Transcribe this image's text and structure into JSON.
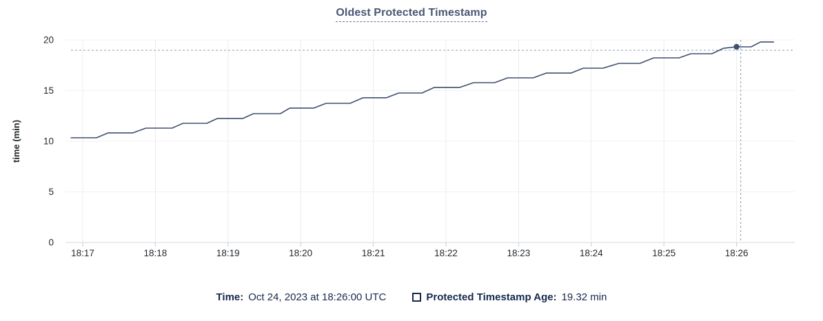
{
  "title": "Oldest Protected Timestamp",
  "tooltip_legend": {
    "time_label": "Time:",
    "time_value": "Oct 24, 2023 at 18:26:00 UTC",
    "series_swatch": "unchecked-square-outline",
    "series_label": "Protected Timestamp Age:",
    "series_value": "19.32 min"
  },
  "colors": {
    "title_text": "#475872",
    "line": "#3f4f6e",
    "hover_dot": "#3f4f6e",
    "crosshair_dashed": "#9fb2c0",
    "grid_horizontal": "#f1f1f3",
    "grid_vertical": "#ececee",
    "axis_baseline": "#d7dadd",
    "tick_mark": "#c8cbd0",
    "tick_label_text": "#24292e",
    "legend_text": "#16294d",
    "background": "#ffffff"
  },
  "chart_data": {
    "type": "line",
    "title": "Oldest Protected Timestamp",
    "xlabel": "",
    "ylabel": "time (min)",
    "ylim": [
      0,
      20
    ],
    "yticks": [
      0,
      5,
      10,
      15,
      20
    ],
    "ytick_labels": [
      "0",
      "5",
      "10",
      "15",
      "20"
    ],
    "xtick_labels": [
      "18:17",
      "18:18",
      "18:19",
      "18:20",
      "18:21",
      "18:22",
      "18:23",
      "18:24",
      "18:25",
      "18:26"
    ],
    "xtick_t": [
      0,
      1,
      2,
      3,
      4,
      5,
      6,
      7,
      8,
      9
    ],
    "x_unit": "minutes after 18:17 UTC, Oct 24 2023",
    "grid": true,
    "legend_position": "bottom",
    "series": [
      {
        "name": "Protected Timestamp Age",
        "unit": "min",
        "points": [
          [
            -0.16,
            10.34
          ],
          [
            0.19,
            10.34
          ],
          [
            0.35,
            10.82
          ],
          [
            0.69,
            10.82
          ],
          [
            0.87,
            11.29
          ],
          [
            1.23,
            11.29
          ],
          [
            1.38,
            11.77
          ],
          [
            1.71,
            11.77
          ],
          [
            1.85,
            12.24
          ],
          [
            2.2,
            12.24
          ],
          [
            2.35,
            12.72
          ],
          [
            2.72,
            12.72
          ],
          [
            2.85,
            13.27
          ],
          [
            3.18,
            13.27
          ],
          [
            3.35,
            13.74
          ],
          [
            3.68,
            13.74
          ],
          [
            3.86,
            14.29
          ],
          [
            4.18,
            14.29
          ],
          [
            4.35,
            14.76
          ],
          [
            4.67,
            14.76
          ],
          [
            4.84,
            15.31
          ],
          [
            5.19,
            15.31
          ],
          [
            5.38,
            15.78
          ],
          [
            5.67,
            15.78
          ],
          [
            5.85,
            16.26
          ],
          [
            6.2,
            16.26
          ],
          [
            6.38,
            16.73
          ],
          [
            6.72,
            16.73
          ],
          [
            6.89,
            17.21
          ],
          [
            7.16,
            17.21
          ],
          [
            7.38,
            17.69
          ],
          [
            7.67,
            17.69
          ],
          [
            7.86,
            18.23
          ],
          [
            8.21,
            18.23
          ],
          [
            8.37,
            18.64
          ],
          [
            8.66,
            18.64
          ],
          [
            8.82,
            19.18
          ],
          [
            9.0,
            19.32
          ],
          [
            9.2,
            19.32
          ],
          [
            9.33,
            19.8
          ],
          [
            9.51,
            19.8
          ]
        ]
      }
    ],
    "hover": {
      "t": 9.0,
      "time": "18:26:00 UTC",
      "value": 19.32,
      "crosshair": true
    }
  }
}
